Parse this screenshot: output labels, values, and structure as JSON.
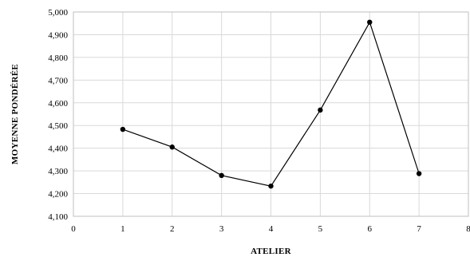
{
  "chart_data": {
    "type": "line",
    "title": "",
    "xlabel": "ATELIER",
    "ylabel": "MOYENNE PONDÉRÉE",
    "xlim": [
      0,
      8
    ],
    "ylim": [
      4.1,
      5.0
    ],
    "x_ticks": [
      "0",
      "1",
      "2",
      "3",
      "4",
      "5",
      "6",
      "7",
      "8"
    ],
    "y_ticks": [
      "4,100",
      "4,200",
      "4,300",
      "4,400",
      "4,500",
      "4,600",
      "4,700",
      "4,800",
      "4,900",
      "5,000"
    ],
    "grid": true,
    "legend": "none",
    "series": [
      {
        "x": [
          1,
          2,
          3,
          4,
          5,
          6,
          7
        ],
        "values": [
          4.483,
          4.405,
          4.28,
          4.233,
          4.568,
          4.955,
          4.288
        ]
      }
    ],
    "colors": {
      "line": "#000000",
      "grid": "#d9d9d9"
    }
  }
}
